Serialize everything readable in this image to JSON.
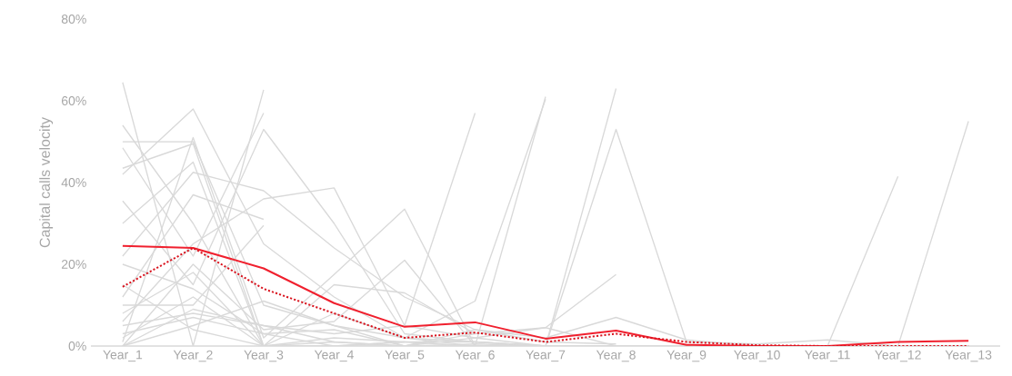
{
  "chart_data": {
    "type": "line",
    "ylabel": "Capital calls velocity",
    "categories": [
      "Year_1",
      "Year_2",
      "Year_3",
      "Year_4",
      "Year_5",
      "Year_6",
      "Year_7",
      "Year_8",
      "Year_9",
      "Year_10",
      "Year_11",
      "Year_12",
      "Year_13"
    ],
    "ylim": [
      0,
      80
    ],
    "yticks": [
      {
        "value": 0,
        "label": "0%"
      },
      {
        "value": 20,
        "label": "20%"
      },
      {
        "value": 40,
        "label": "40%"
      },
      {
        "value": 60,
        "label": "60%"
      },
      {
        "value": 80,
        "label": "80%"
      }
    ],
    "series": [
      {
        "color": "#d9d9d9",
        "values": [
          64.5,
          0,
          62.7,
          null,
          null,
          null,
          null,
          null,
          null,
          null,
          null,
          null,
          null
        ]
      },
      {
        "color": "#d9d9d9",
        "values": [
          54,
          30,
          0,
          8,
          2,
          0,
          0,
          0,
          null,
          null,
          null,
          null,
          null
        ]
      },
      {
        "color": "#d9d9d9",
        "values": [
          50,
          50,
          10,
          5,
          0,
          0.5,
          0,
          0,
          0,
          0,
          0,
          null,
          null
        ]
      },
      {
        "color": "#d9d9d9",
        "values": [
          48.5,
          22,
          57,
          null,
          null,
          null,
          null,
          null,
          null,
          null,
          null,
          null,
          null
        ]
      },
      {
        "color": "#d9d9d9",
        "values": [
          43.5,
          49.5,
          0,
          0,
          1,
          null,
          null,
          null,
          null,
          null,
          null,
          null,
          null
        ]
      },
      {
        "color": "#d9d9d9",
        "values": [
          42,
          58,
          25,
          12,
          2,
          1,
          0,
          null,
          null,
          null,
          null,
          null,
          null
        ]
      },
      {
        "color": "#d9d9d9",
        "values": [
          35.5,
          15,
          53,
          30,
          3,
          1,
          0,
          0,
          0,
          null,
          null,
          null,
          null
        ]
      },
      {
        "color": "#d9d9d9",
        "values": [
          22,
          42.5,
          38,
          24,
          12,
          4,
          1,
          0.5,
          null,
          null,
          null,
          null,
          null
        ]
      },
      {
        "color": "#d9d9d9",
        "values": [
          12,
          37,
          31,
          null,
          null,
          null,
          null,
          null,
          null,
          null,
          null,
          null,
          null
        ]
      },
      {
        "color": "#d9d9d9",
        "values": [
          10,
          10,
          29.5,
          null,
          null,
          null,
          null,
          null,
          null,
          null,
          null,
          null,
          null
        ]
      },
      {
        "color": "#d9d9d9",
        "values": [
          6,
          25,
          36,
          38.7,
          5,
          57,
          null,
          null,
          null,
          null,
          null,
          null,
          null
        ]
      },
      {
        "color": "#d9d9d9",
        "values": [
          1,
          51,
          2,
          17.5,
          33.5,
          0,
          null,
          null,
          null,
          null,
          null,
          null,
          null
        ]
      },
      {
        "color": "#d9d9d9",
        "values": [
          0,
          20,
          4,
          6,
          21,
          0,
          61,
          null,
          null,
          null,
          null,
          null,
          null
        ]
      },
      {
        "color": "#d9d9d9",
        "values": [
          0,
          5,
          11,
          5,
          2,
          11,
          60.4,
          null,
          null,
          null,
          null,
          null,
          null
        ]
      },
      {
        "color": "#d9d9d9",
        "values": [
          8,
          18,
          0,
          15,
          13,
          3,
          4.5,
          17.5,
          null,
          null,
          null,
          null,
          null
        ]
      },
      {
        "color": "#d9d9d9",
        "values": [
          5,
          8,
          5,
          3,
          5,
          2,
          4.5,
          0,
          0,
          null,
          null,
          null,
          null
        ]
      },
      {
        "color": "#d9d9d9",
        "values": [
          20,
          14,
          3,
          4,
          0,
          2,
          0,
          63,
          null,
          null,
          null,
          null,
          null
        ]
      },
      {
        "color": "#d9d9d9",
        "values": [
          2,
          12,
          0,
          2,
          1,
          0,
          0,
          53,
          1,
          0.5,
          1.5,
          0,
          null
        ]
      },
      {
        "color": "#d9d9d9",
        "values": [
          0,
          9,
          5,
          1,
          0,
          4,
          2,
          7,
          1.5,
          0,
          0,
          0,
          55
        ]
      },
      {
        "color": "#d9d9d9",
        "values": [
          3,
          7,
          3,
          0,
          1,
          1,
          0,
          0,
          0,
          0,
          0,
          41.5,
          null
        ]
      },
      {
        "color": "#d9d9d9",
        "values": [
          15,
          4,
          0,
          0,
          0,
          0,
          0,
          0,
          0,
          0,
          0,
          0,
          0
        ]
      },
      {
        "color": "#d9d9d9",
        "values": [
          30,
          45,
          0,
          1,
          0,
          3,
          null,
          null,
          null,
          null,
          null,
          null,
          null
        ]
      },
      {
        "color": "#f0202e",
        "line_style": "solid",
        "values": [
          24.5,
          24,
          19,
          10.5,
          4.7,
          5.8,
          1.8,
          3.8,
          0.3,
          0,
          0,
          1,
          1.3
        ]
      },
      {
        "color": "#d9141f",
        "line_style": "dotted",
        "values": [
          14.5,
          24,
          14,
          8,
          2,
          3.3,
          1,
          3,
          1,
          0.2,
          0,
          0,
          0
        ]
      }
    ]
  }
}
